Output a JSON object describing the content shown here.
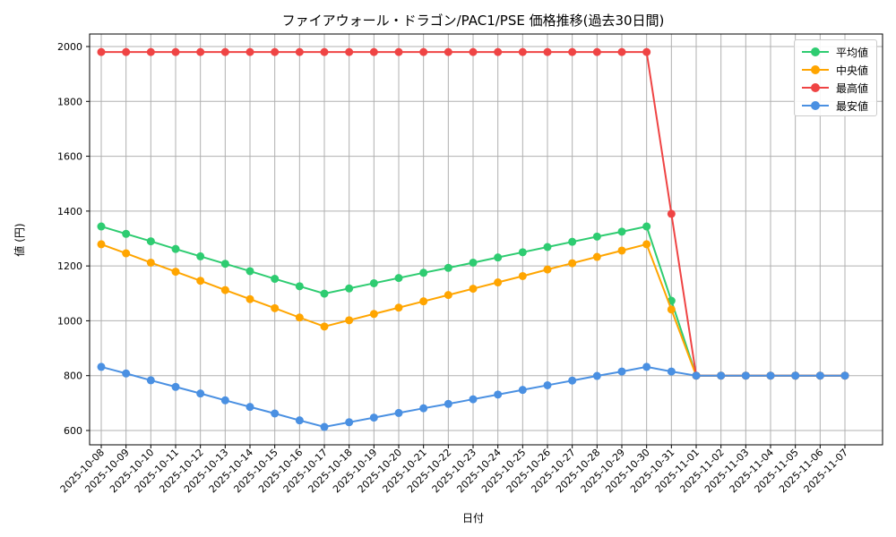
{
  "chart_data": {
    "type": "line",
    "title": "ファイアウォール・ドラゴン/PAC1/PSE 価格推移(過去30日間)",
    "xlabel": "日付",
    "ylabel": "値 (円)",
    "ylim": [
      545,
      2050
    ],
    "yticks": [
      600,
      800,
      1000,
      1200,
      1400,
      1600,
      1800,
      2000
    ],
    "grid": true,
    "legend_position": "upper right",
    "x": [
      "2025-10-08",
      "2025-10-09",
      "2025-10-10",
      "2025-10-11",
      "2025-10-12",
      "2025-10-13",
      "2025-10-14",
      "2025-10-15",
      "2025-10-16",
      "2025-10-17",
      "2025-10-18",
      "2025-10-19",
      "2025-10-20",
      "2025-10-21",
      "2025-10-22",
      "2025-10-23",
      "2025-10-24",
      "2025-10-25",
      "2025-10-26",
      "2025-10-27",
      "2025-10-28",
      "2025-10-29",
      "2025-10-30",
      "2025-10-31",
      "2025-11-01",
      "2025-11-02",
      "2025-11-03",
      "2025-11-04",
      "2025-11-05",
      "2025-11-06",
      "2025-11-07"
    ],
    "series": [
      {
        "name": "平均値",
        "color": "#2ecc71",
        "values": [
          1344,
          1317,
          1290,
          1262,
          1235,
          1208,
          1181,
          1153,
          1126,
          1099,
          1118,
          1137,
          1156,
          1175,
          1193,
          1212,
          1231,
          1250,
          1269,
          1288,
          1307,
          1325,
          1344,
          1073,
          800,
          800,
          800,
          800,
          800,
          800,
          800
        ]
      },
      {
        "name": "中央値",
        "color": "#ffa500",
        "values": [
          1279,
          1246,
          1212,
          1179,
          1146,
          1112,
          1079,
          1046,
          1012,
          979,
          1002,
          1025,
          1048,
          1071,
          1094,
          1117,
          1140,
          1163,
          1187,
          1210,
          1233,
          1256,
          1279,
          1041,
          800,
          800,
          800,
          800,
          800,
          800,
          800
        ]
      },
      {
        "name": "最高値",
        "color": "#ef4444",
        "values": [
          1980,
          1980,
          1980,
          1980,
          1980,
          1980,
          1980,
          1980,
          1980,
          1980,
          1980,
          1980,
          1980,
          1980,
          1980,
          1980,
          1980,
          1980,
          1980,
          1980,
          1980,
          1980,
          1980,
          1390,
          800,
          800,
          800,
          800,
          800,
          800,
          800
        ]
      },
      {
        "name": "最安値",
        "color": "#4a90e2",
        "values": [
          832,
          808,
          783,
          759,
          735,
          710,
          686,
          662,
          637,
          613,
          630,
          647,
          664,
          681,
          697,
          714,
          731,
          748,
          765,
          782,
          799,
          815,
          832,
          815,
          800,
          800,
          800,
          800,
          800,
          800,
          800
        ]
      }
    ]
  }
}
